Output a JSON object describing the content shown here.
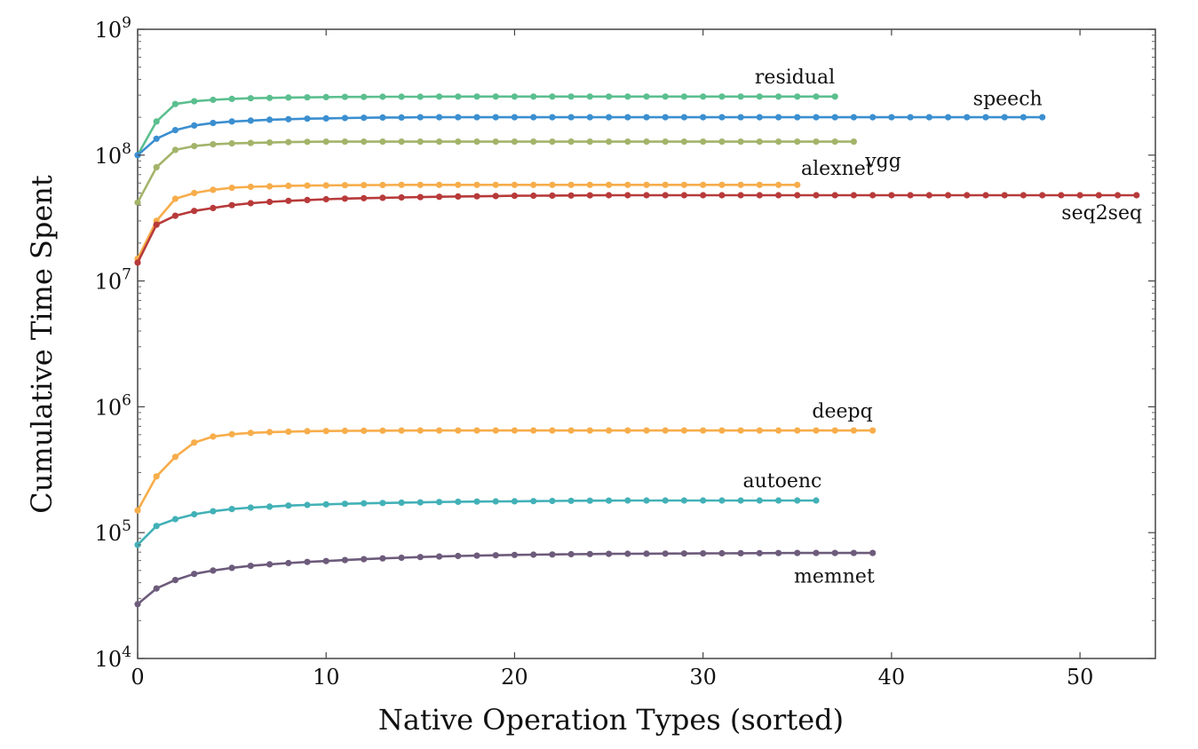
{
  "chart_data": {
    "type": "line",
    "xlabel": "Native Operation Types (sorted)",
    "ylabel": "Cumulative Time Spent",
    "xlim": [
      0,
      54
    ],
    "ylim": [
      10000,
      1000000000
    ],
    "yscale": "log",
    "grid": false,
    "legend": "none",
    "x_ticks": [
      0,
      10,
      20,
      30,
      40,
      50
    ],
    "y_ticks": [
      {
        "value": 10000,
        "base": "10",
        "exp": "4"
      },
      {
        "value": 100000,
        "base": "10",
        "exp": "5"
      },
      {
        "value": 1000000,
        "base": "10",
        "exp": "6"
      },
      {
        "value": 10000000,
        "base": "10",
        "exp": "7"
      },
      {
        "value": 100000000,
        "base": "10",
        "exp": "8"
      },
      {
        "value": 1000000000,
        "base": "10",
        "exp": "9"
      }
    ],
    "series": [
      {
        "name": "residual",
        "color": "#5bbf8f",
        "label_anchor": "end",
        "label_at": [
          37,
          370000000
        ],
        "values": [
          100000000,
          185000000,
          255000000,
          268000000,
          275000000,
          280000000,
          283000000,
          285000000,
          287000000,
          288000000,
          289000000,
          290000000,
          290000000,
          291000000,
          291000000,
          291000000,
          292000000,
          292000000,
          292000000,
          292000000,
          292000000,
          292000000,
          292000000,
          292000000,
          292000000,
          292000000,
          292000000,
          292000000,
          292000000,
          292000000,
          292000000,
          292000000,
          292000000,
          292000000,
          292000000,
          292000000,
          292000000,
          292000000
        ]
      },
      {
        "name": "speech",
        "color": "#3b8fd0",
        "label_anchor": "end",
        "label_at": [
          48,
          250000000
        ],
        "values": [
          100000000,
          135000000,
          158000000,
          172000000,
          180000000,
          185000000,
          188000000,
          191000000,
          193000000,
          195000000,
          196000000,
          197000000,
          198000000,
          199000000,
          199000000,
          200000000,
          200000000,
          200000000,
          200000000,
          200000000,
          200000000,
          200000000,
          200000000,
          200000000,
          200000000,
          200000000,
          200000000,
          200000000,
          200000000,
          200000000,
          200000000,
          200000000,
          200000000,
          200000000,
          200000000,
          200000000,
          200000000,
          200000000,
          200000000,
          200000000,
          200000000,
          200000000,
          200000000,
          200000000,
          200000000,
          200000000,
          200000000,
          200000000,
          200000000
        ]
      },
      {
        "name": "vgg",
        "color": "#a3b46a",
        "label_anchor": "start",
        "label_at": [
          38.6,
          80000000
        ],
        "values": [
          42000000,
          80000000,
          110000000,
          118000000,
          122000000,
          124000000,
          125000000,
          126000000,
          127000000,
          127500000,
          128000000,
          128000000,
          128000000,
          128000000,
          128000000,
          128000000,
          128000000,
          128000000,
          128000000,
          128000000,
          128000000,
          128000000,
          128000000,
          128000000,
          128000000,
          128000000,
          128000000,
          128000000,
          128000000,
          128000000,
          128000000,
          128000000,
          128000000,
          128000000,
          128000000,
          128000000,
          128000000,
          128000000,
          128000000
        ]
      },
      {
        "name": "alexnet",
        "color": "#f7ad4a",
        "label_anchor": "start",
        "label_at": [
          35.2,
          70000000
        ],
        "values": [
          15000000,
          30000000,
          45000000,
          50000000,
          53000000,
          55000000,
          56000000,
          56500000,
          57000000,
          57300000,
          57500000,
          57700000,
          57800000,
          57900000,
          58000000,
          58000000,
          58000000,
          58000000,
          58000000,
          58000000,
          58000000,
          58000000,
          58000000,
          58000000,
          58000000,
          58000000,
          58000000,
          58000000,
          58000000,
          58000000,
          58000000,
          58000000,
          58000000,
          58000000,
          58000000,
          58000000
        ]
      },
      {
        "name": "seq2seq",
        "color": "#b83a3a",
        "label_anchor": "end",
        "label_at": [
          53.3,
          31000000
        ],
        "values": [
          14000000,
          28000000,
          33000000,
          36000000,
          38000000,
          40000000,
          41500000,
          42500000,
          43300000,
          44000000,
          44600000,
          45100000,
          45500000,
          45800000,
          46100000,
          46400000,
          46700000,
          46900000,
          47100000,
          47300000,
          47500000,
          47600000,
          47700000,
          47800000,
          47900000,
          48000000,
          48000000,
          48000000,
          48000000,
          48000000,
          48000000,
          48000000,
          48000000,
          48000000,
          48000000,
          48000000,
          48000000,
          48000000,
          48000000,
          48000000,
          48000000,
          48000000,
          48000000,
          48000000,
          48000000,
          48000000,
          48000000,
          48000000,
          48000000,
          48000000,
          48000000,
          48000000,
          48000000,
          48000000
        ]
      },
      {
        "name": "deepq",
        "color": "#f7ad4a",
        "label_anchor": "end",
        "label_at": [
          39,
          820000
        ],
        "values": [
          150000,
          280000,
          400000,
          520000,
          580000,
          605000,
          620000,
          630000,
          635000,
          640000,
          642000,
          644000,
          645000,
          646000,
          647000,
          648000,
          648000,
          648000,
          648000,
          648000,
          648000,
          648000,
          648000,
          648000,
          648000,
          648000,
          648000,
          648000,
          648000,
          648000,
          648000,
          648000,
          648000,
          648000,
          648000,
          648000,
          648000,
          648000,
          648000,
          648000
        ]
      },
      {
        "name": "autoenc",
        "color": "#42b1b7",
        "label_anchor": "end",
        "label_at": [
          36.3,
          230000
        ],
        "values": [
          80000,
          113000,
          128000,
          140000,
          148000,
          154000,
          158000,
          161000,
          164000,
          166000,
          168000,
          169500,
          171000,
          172000,
          173000,
          174000,
          175000,
          176000,
          176500,
          177000,
          177500,
          178000,
          178500,
          179000,
          179300,
          179600,
          180000,
          180000,
          180000,
          180000,
          180000,
          180000,
          180000,
          180000,
          180000,
          180000,
          180000
        ]
      },
      {
        "name": "memnet",
        "color": "#6d5b7b",
        "label_anchor": "end",
        "label_at": [
          39.1,
          40000
        ],
        "values": [
          27000,
          36000,
          42000,
          47000,
          50000,
          52500,
          54500,
          56000,
          57300,
          58500,
          59500,
          60500,
          61500,
          62400,
          63200,
          64000,
          64600,
          65200,
          65700,
          66100,
          66500,
          66800,
          67100,
          67400,
          67600,
          67800,
          68000,
          68100,
          68200,
          68300,
          68400,
          68500,
          68600,
          68700,
          68800,
          68900,
          69000,
          69000,
          69000,
          69000
        ]
      }
    ]
  }
}
